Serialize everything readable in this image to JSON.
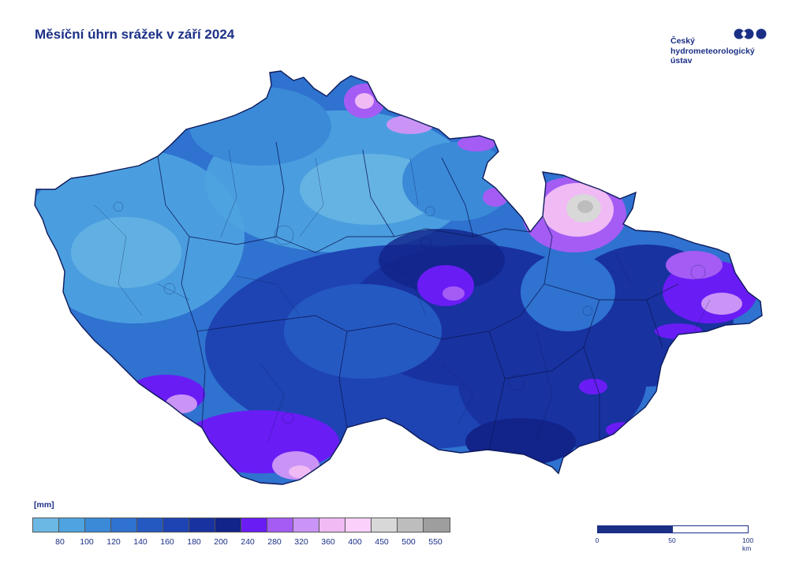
{
  "title": "Měsíční úhrn srážek v září 2024",
  "logo": {
    "lines": [
      "Český",
      "hydrometeorologický",
      "ústav"
    ]
  },
  "legend": {
    "unit": "[mm]",
    "colors": [
      "#6cb8e4",
      "#4ea3e0",
      "#3a8ad8",
      "#2f72cf",
      "#2559c2",
      "#1e44b3",
      "#1832a0",
      "#122389",
      "#6a1cf5",
      "#a45cf4",
      "#c994f5",
      "#f0baf5",
      "#fbd0fa",
      "#d8d8d8",
      "#bdbdbd",
      "#9e9e9e"
    ],
    "labels": [
      "80",
      "100",
      "120",
      "140",
      "160",
      "180",
      "200",
      "240",
      "280",
      "320",
      "360",
      "400",
      "450",
      "500",
      "550"
    ]
  },
  "scale": {
    "labels": [
      "0",
      "50",
      "100 km"
    ]
  }
}
